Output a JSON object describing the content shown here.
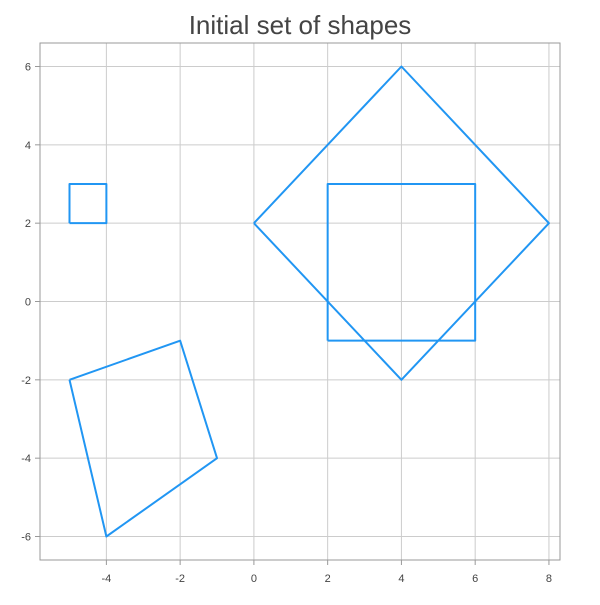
{
  "chart_data": {
    "type": "line",
    "title": "Initial set of shapes",
    "xlabel": "",
    "ylabel": "",
    "xlim": [
      -5.8,
      8.3
    ],
    "ylim": [
      -6.6,
      6.6
    ],
    "x_ticks": [
      -4,
      -2,
      0,
      2,
      4,
      6,
      8
    ],
    "y_ticks": [
      -6,
      -4,
      -2,
      0,
      2,
      4,
      6
    ],
    "grid": true,
    "legend": "none",
    "line_color": "#2196f3",
    "series": [
      {
        "points": [
          [
            -5,
            2
          ],
          [
            -4,
            2
          ],
          [
            -4,
            3
          ],
          [
            -5,
            3
          ],
          [
            -5,
            2
          ]
        ]
      },
      {
        "points": [
          [
            2,
            -1
          ],
          [
            6,
            -1
          ],
          [
            6,
            3
          ],
          [
            2,
            3
          ],
          [
            2,
            -1
          ]
        ]
      },
      {
        "points": [
          [
            0,
            2
          ],
          [
            4,
            6
          ],
          [
            8,
            2
          ],
          [
            4,
            -2
          ],
          [
            0,
            2
          ]
        ]
      },
      {
        "points": [
          [
            -5,
            -2
          ],
          [
            -2,
            -1
          ],
          [
            -1,
            -4
          ],
          [
            -4,
            -6
          ],
          [
            -5,
            -2
          ]
        ]
      }
    ]
  }
}
